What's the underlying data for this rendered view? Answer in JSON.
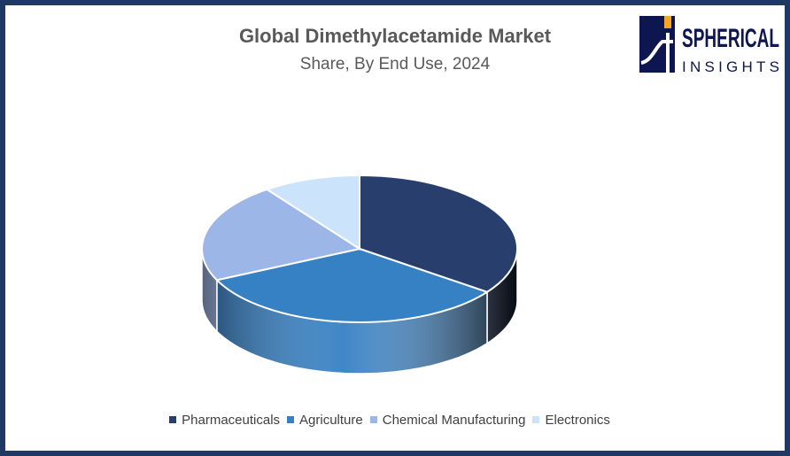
{
  "chart_data": {
    "type": "pie",
    "title": "Global Dimethylacetamide Market",
    "subtitle": "Share, By End Use, 2024",
    "categories": [
      "Pharmaceuticals",
      "Agriculture",
      "Chemical Manufacturing",
      "Electronics"
    ],
    "values": [
      35,
      33,
      22,
      10
    ],
    "colors": [
      "#283f6e",
      "#3680c4",
      "#9db6e8",
      "#cce4fb"
    ],
    "legend_position": "bottom",
    "style": "3d"
  },
  "logo": {
    "line1": "SPHERICAL",
    "line2": "INSIGHTS"
  }
}
